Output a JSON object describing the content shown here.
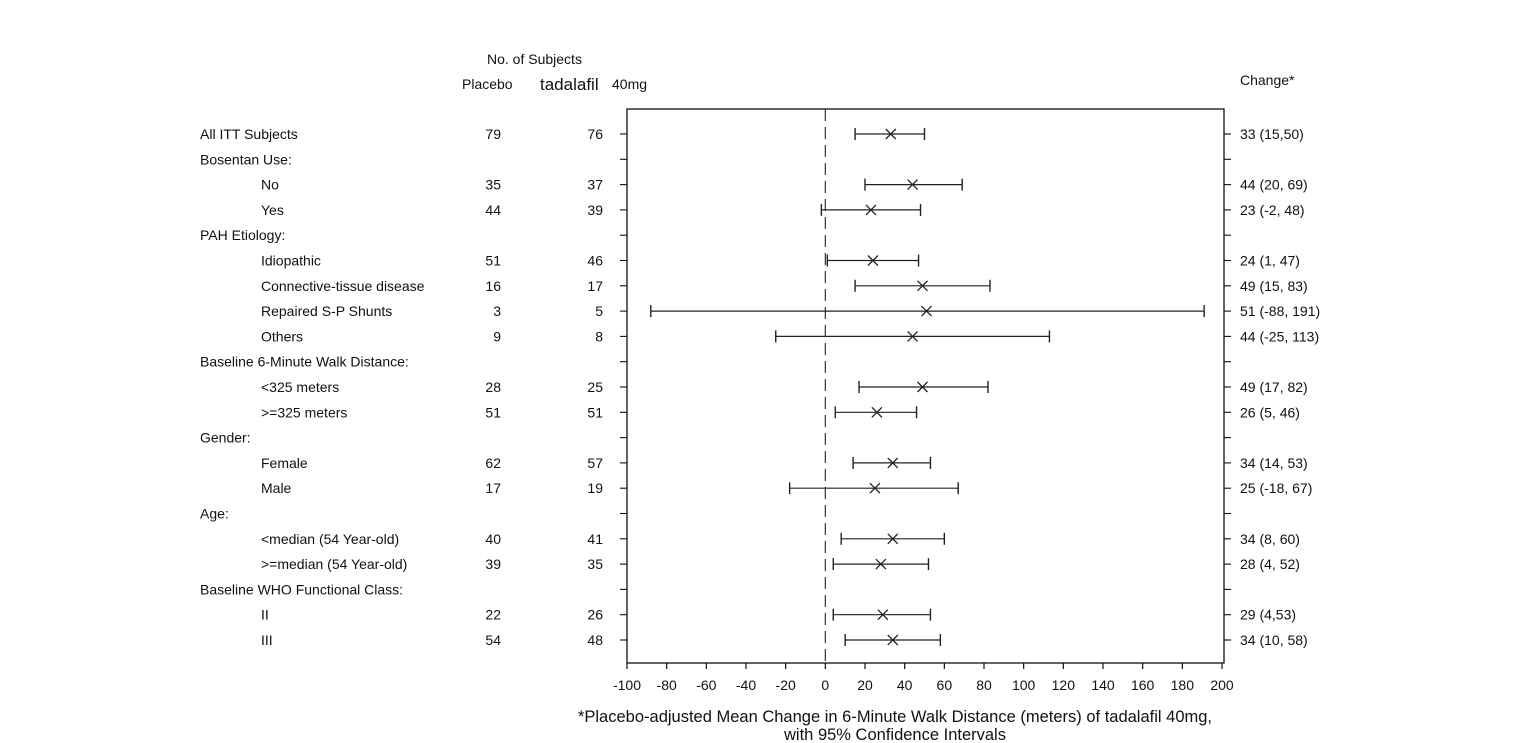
{
  "chart_data": {
    "type": "forest",
    "header": {
      "subjects": "No. of Subjects",
      "placebo": "Placebo",
      "drug": "tadalafil",
      "dose": "40mg",
      "change": "Change*"
    },
    "xlabel_line1": "*Placebo-adjusted Mean Change in 6-Minute Walk Distance (meters) of tadalafil 40mg,",
    "xlabel_line2": "with 95% Confidence Intervals",
    "xlim": [
      -100,
      200
    ],
    "xticks": [
      "-100",
      "-80",
      "-60",
      "-40",
      "-20",
      "0",
      "20",
      "40",
      "60",
      "80",
      "100",
      "120",
      "140",
      "160",
      "180",
      "200"
    ],
    "reference_line": 0,
    "rows": [
      {
        "label": "All ITT Subjects",
        "indent": 0,
        "placebo": "79",
        "tadalafil": "76",
        "est": 33,
        "lo": 15,
        "hi": 50,
        "change": "33 (15,50)"
      },
      {
        "label": "Bosentan Use:",
        "indent": 0
      },
      {
        "label": "No",
        "indent": 1,
        "placebo": "35",
        "tadalafil": "37",
        "est": 44,
        "lo": 20,
        "hi": 69,
        "change": "44 (20, 69)"
      },
      {
        "label": "Yes",
        "indent": 1,
        "placebo": "44",
        "tadalafil": "39",
        "est": 23,
        "lo": -2,
        "hi": 48,
        "change": "23 (-2, 48)"
      },
      {
        "label": "PAH Etiology:",
        "indent": 0
      },
      {
        "label": "Idiopathic",
        "indent": 1,
        "placebo": "51",
        "tadalafil": "46",
        "est": 24,
        "lo": 1,
        "hi": 47,
        "change": "24 (1, 47)"
      },
      {
        "label": "Connective-tissue disease",
        "indent": 1,
        "placebo": "16",
        "tadalafil": "17",
        "est": 49,
        "lo": 15,
        "hi": 83,
        "change": "49 (15, 83)"
      },
      {
        "label": "Repaired S-P Shunts",
        "indent": 1,
        "placebo": "3",
        "tadalafil": "5",
        "est": 51,
        "lo": -88,
        "hi": 191,
        "change": "51 (-88, 191)"
      },
      {
        "label": "Others",
        "indent": 1,
        "placebo": "9",
        "tadalafil": "8",
        "est": 44,
        "lo": -25,
        "hi": 113,
        "change": "44 (-25, 113)"
      },
      {
        "label": "Baseline 6-Minute Walk Distance:",
        "indent": 0
      },
      {
        "label": "<325 meters",
        "indent": 1,
        "placebo": "28",
        "tadalafil": "25",
        "est": 49,
        "lo": 17,
        "hi": 82,
        "change": "49 (17, 82)"
      },
      {
        "label": ">=325 meters",
        "indent": 1,
        "placebo": "51",
        "tadalafil": "51",
        "est": 26,
        "lo": 5,
        "hi": 46,
        "change": "26 (5, 46)"
      },
      {
        "label": "Gender:",
        "indent": 0
      },
      {
        "label": "Female",
        "indent": 1,
        "placebo": "62",
        "tadalafil": "57",
        "est": 34,
        "lo": 14,
        "hi": 53,
        "change": "34 (14, 53)"
      },
      {
        "label": "Male",
        "indent": 1,
        "placebo": "17",
        "tadalafil": "19",
        "est": 25,
        "lo": -18,
        "hi": 67,
        "change": "25 (-18, 67)"
      },
      {
        "label": "Age:",
        "indent": 0
      },
      {
        "label": "<median (54 Year-old)",
        "indent": 1,
        "placebo": "40",
        "tadalafil": "41",
        "est": 34,
        "lo": 8,
        "hi": 60,
        "change": "34 (8, 60)"
      },
      {
        "label": ">=median (54 Year-old)",
        "indent": 1,
        "placebo": "39",
        "tadalafil": "35",
        "est": 28,
        "lo": 4,
        "hi": 52,
        "change": "28 (4, 52)"
      },
      {
        "label": "Baseline WHO Functional Class:",
        "indent": 0
      },
      {
        "label": "II",
        "indent": 1,
        "placebo": "22",
        "tadalafil": "26",
        "est": 29,
        "lo": 4,
        "hi": 53,
        "change": "29 (4,53)"
      },
      {
        "label": "III",
        "indent": 1,
        "placebo": "54",
        "tadalafil": "48",
        "est": 34,
        "lo": 10,
        "hi": 58,
        "change": "34 (10, 58)"
      }
    ]
  }
}
